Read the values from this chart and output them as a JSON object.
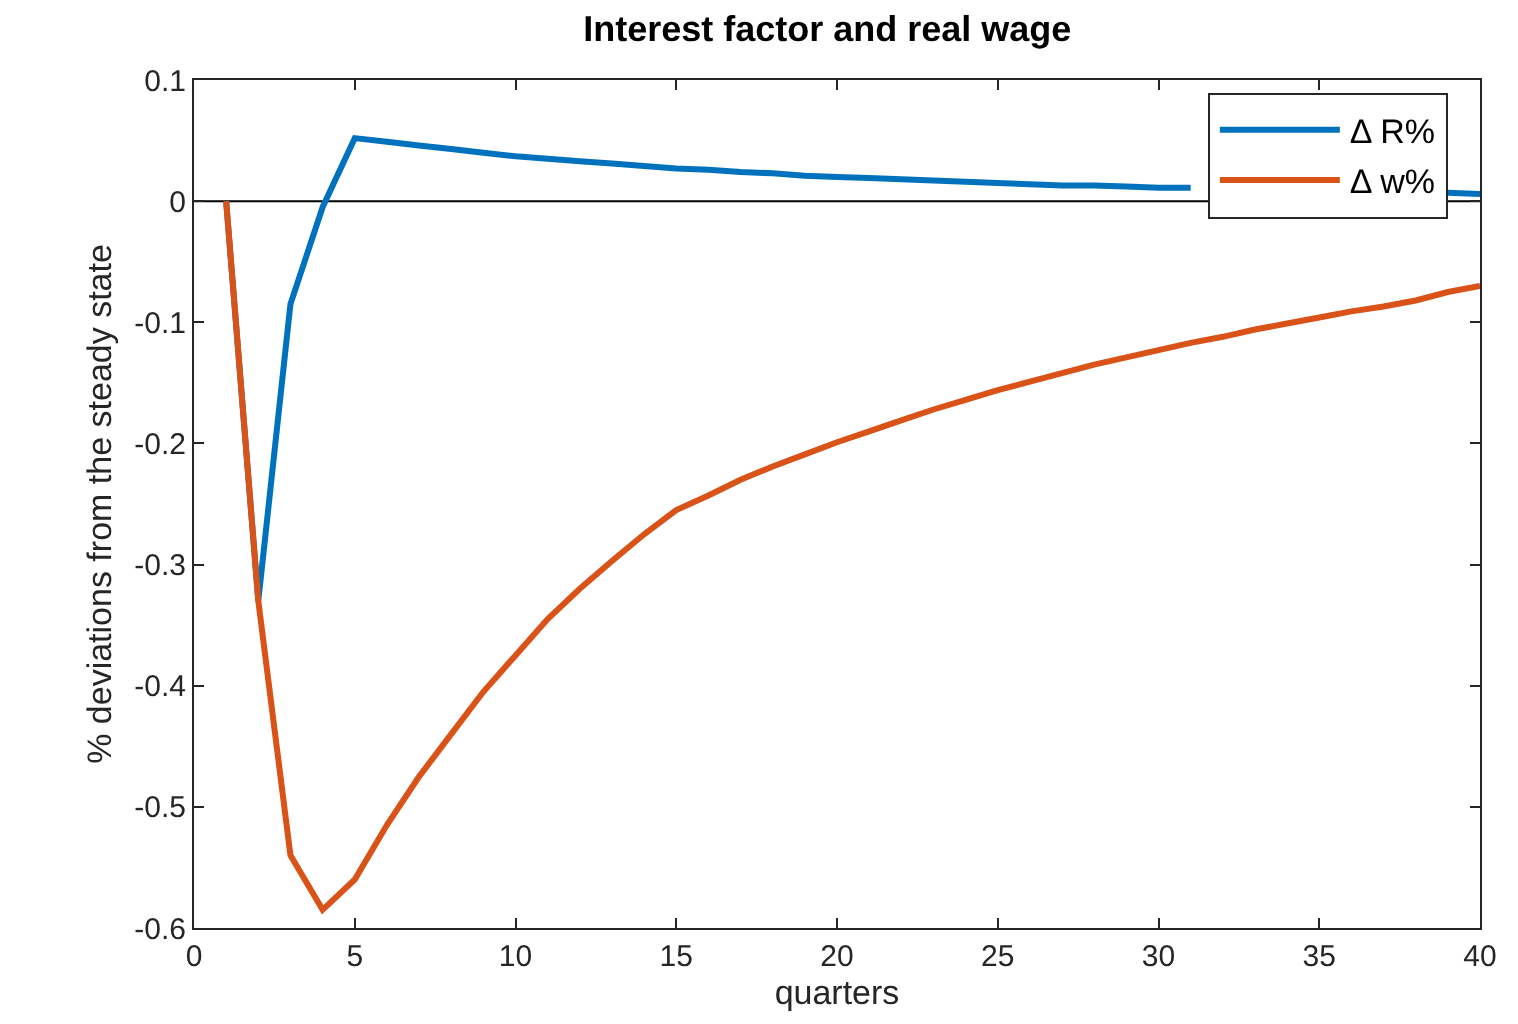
{
  "chart_data": {
    "type": "line",
    "title": "Interest factor and real wage",
    "xlabel": "quarters",
    "ylabel": "% deviations from the steady state",
    "x": [
      1,
      2,
      3,
      4,
      5,
      6,
      7,
      8,
      9,
      10,
      11,
      12,
      13,
      14,
      15,
      16,
      17,
      18,
      19,
      20,
      21,
      22,
      23,
      24,
      25,
      26,
      27,
      28,
      29,
      30,
      31,
      32,
      33,
      34,
      35,
      36,
      37,
      38,
      39,
      40
    ],
    "series": [
      {
        "name": "Δ R%",
        "color": "#0072bd",
        "values": [
          0,
          -0.33,
          -0.085,
          -0.005,
          0.052,
          0.049,
          0.046,
          0.043,
          0.04,
          0.037,
          0.035,
          0.033,
          0.031,
          0.029,
          0.027,
          0.026,
          0.024,
          0.023,
          0.021,
          0.02,
          0.019,
          0.018,
          0.017,
          0.016,
          0.015,
          0.014,
          0.013,
          0.013,
          0.012,
          0.011,
          0.011,
          null,
          null,
          null,
          null,
          null,
          null,
          null,
          0.007,
          0.006
        ]
      },
      {
        "name": "Δ w%",
        "color": "#d95319",
        "values": [
          0,
          -0.33,
          -0.54,
          -0.585,
          -0.56,
          -0.515,
          -0.475,
          -0.44,
          -0.405,
          -0.375,
          -0.345,
          -0.32,
          -0.297,
          -0.275,
          -0.255,
          -0.243,
          -0.23,
          -0.219,
          -0.209,
          -0.199,
          -0.19,
          -0.181,
          -0.172,
          -0.164,
          -0.156,
          -0.149,
          -0.142,
          -0.135,
          -0.129,
          -0.123,
          -0.117,
          -0.112,
          -0.106,
          -0.101,
          -0.096,
          -0.091,
          -0.087,
          -0.082,
          -0.075,
          -0.07
        ]
      }
    ],
    "xlim": [
      0,
      40
    ],
    "xticks": [
      0,
      5,
      10,
      15,
      20,
      25,
      30,
      35,
      40
    ],
    "ylim": [
      -0.6,
      0.1
    ],
    "yticks": [
      {
        "value": -0.6,
        "label": "-0.6"
      },
      {
        "value": -0.5,
        "label": "-0.5"
      },
      {
        "value": -0.4,
        "label": "-0.4"
      },
      {
        "value": -0.3,
        "label": "-0.3"
      },
      {
        "value": -0.2,
        "label": "-0.2"
      },
      {
        "value": -0.1,
        "label": "-0.1"
      },
      0,
      0.1
    ],
    "ref_lines": [
      {
        "axis": "y",
        "value": 0,
        "color": "#000000"
      }
    ],
    "legend": "top right",
    "grid": false,
    "marker": "none",
    "line_style": "solid"
  }
}
